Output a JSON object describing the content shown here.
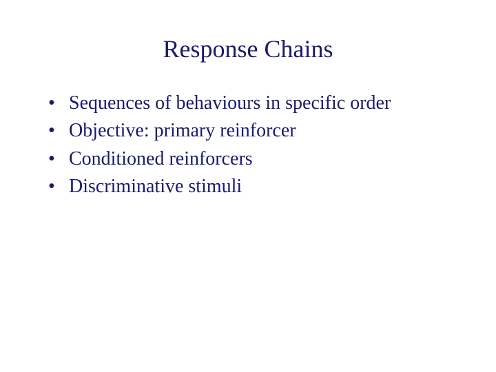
{
  "slide": {
    "title": "Response Chains",
    "title_color": "#1a1a6e",
    "title_fontsize": 36,
    "background_color": "#ffffff",
    "bullet_marker": "•",
    "bullet_color": "#1a1a6e",
    "text_color": "#1a1a6e",
    "text_fontsize": 28,
    "font_family": "Times New Roman",
    "bullets": [
      "Sequences of behaviours in specific order",
      "Objective: primary reinforcer",
      "Conditioned reinforcers",
      "Discriminative stimuli"
    ]
  }
}
